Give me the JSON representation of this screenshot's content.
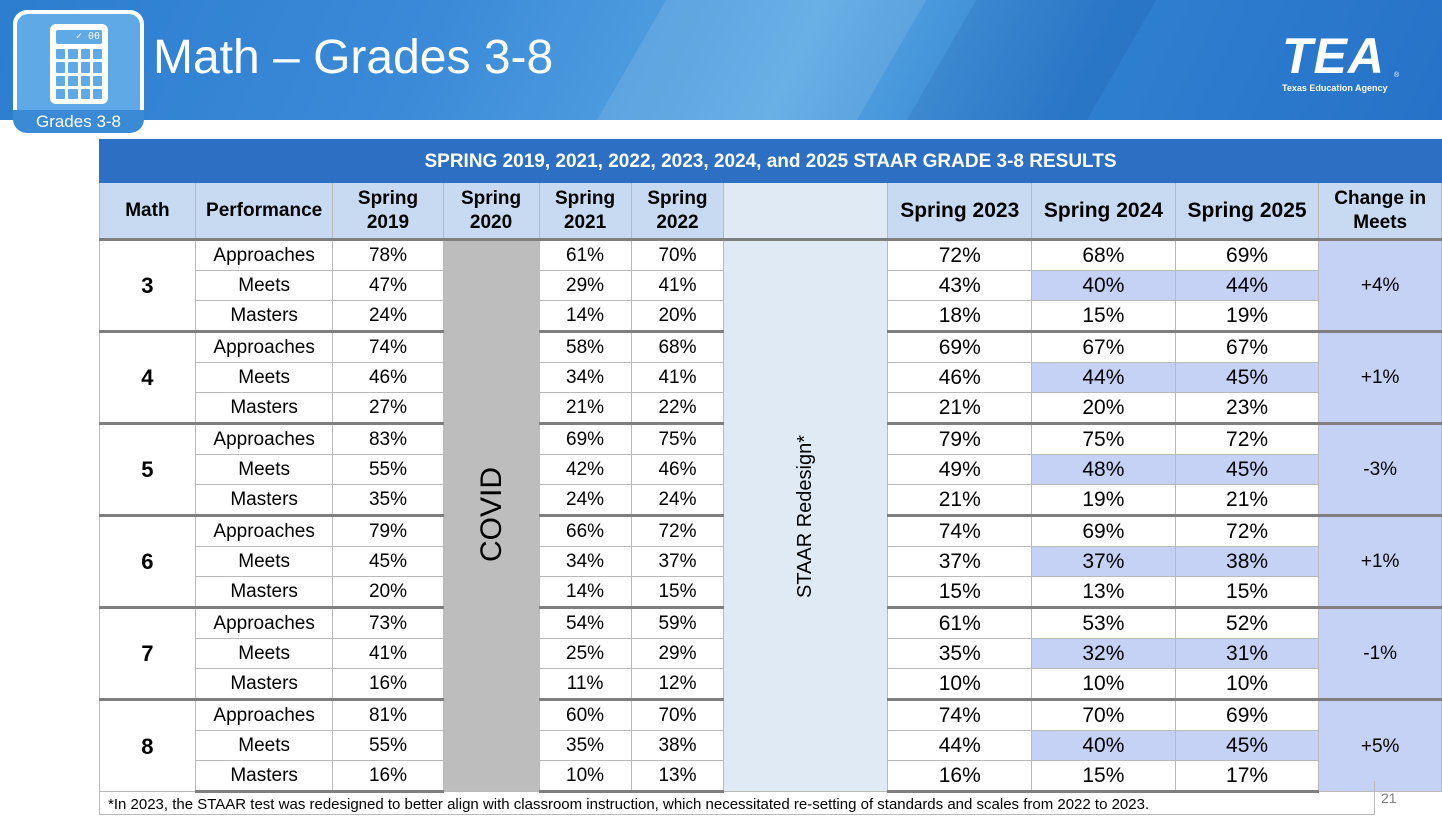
{
  "header": {
    "title": "Math – Grades 3-8",
    "icon_label": "Grades 3-8",
    "calc_screen": "✓ 00",
    "logo_text": "TEA",
    "logo_subtitle": "Texas Education Agency",
    "logo_reg": "®"
  },
  "table": {
    "caption": "SPRING 2019, 2021, 2022, 2023, 2024, and 2025 STAAR GRADE 3-8 RESULTS",
    "headers": {
      "math": "Math",
      "performance": "Performance",
      "spring2019_a": "Spring",
      "spring2019_b": "2019",
      "spring2020_a": "Spring",
      "spring2020_b": "2020",
      "spring2021_a": "Spring",
      "spring2021_b": "2021",
      "spring2022_a": "Spring",
      "spring2022_b": "2022",
      "spring2023": "Spring 2023",
      "spring2024": "Spring 2024",
      "spring2025": "Spring 2025",
      "change_a": "Change in",
      "change_b": "Meets"
    },
    "covid_label": "COVID",
    "redesign_label": "STAAR Redesign*",
    "grades": [
      {
        "grade": "3",
        "change": "+4%",
        "rows": [
          {
            "level": "Approaches",
            "s2019": "78%",
            "s2021": "61%",
            "s2022": "70%",
            "s2023": "72%",
            "s2024": "68%",
            "s2025": "69%"
          },
          {
            "level": "Meets",
            "s2019": "47%",
            "s2021": "29%",
            "s2022": "41%",
            "s2023": "43%",
            "s2024": "40%",
            "s2025": "44%"
          },
          {
            "level": "Masters",
            "s2019": "24%",
            "s2021": "14%",
            "s2022": "20%",
            "s2023": "18%",
            "s2024": "15%",
            "s2025": "19%"
          }
        ]
      },
      {
        "grade": "4",
        "change": "+1%",
        "rows": [
          {
            "level": "Approaches",
            "s2019": "74%",
            "s2021": "58%",
            "s2022": "68%",
            "s2023": "69%",
            "s2024": "67%",
            "s2025": "67%"
          },
          {
            "level": "Meets",
            "s2019": "46%",
            "s2021": "34%",
            "s2022": "41%",
            "s2023": "46%",
            "s2024": "44%",
            "s2025": "45%"
          },
          {
            "level": "Masters",
            "s2019": "27%",
            "s2021": "21%",
            "s2022": "22%",
            "s2023": "21%",
            "s2024": "20%",
            "s2025": "23%"
          }
        ]
      },
      {
        "grade": "5",
        "change": "-3%",
        "rows": [
          {
            "level": "Approaches",
            "s2019": "83%",
            "s2021": "69%",
            "s2022": "75%",
            "s2023": "79%",
            "s2024": "75%",
            "s2025": "72%"
          },
          {
            "level": "Meets",
            "s2019": "55%",
            "s2021": "42%",
            "s2022": "46%",
            "s2023": "49%",
            "s2024": "48%",
            "s2025": "45%"
          },
          {
            "level": "Masters",
            "s2019": "35%",
            "s2021": "24%",
            "s2022": "24%",
            "s2023": "21%",
            "s2024": "19%",
            "s2025": "21%"
          }
        ]
      },
      {
        "grade": "6",
        "change": "+1%",
        "rows": [
          {
            "level": "Approaches",
            "s2019": "79%",
            "s2021": "66%",
            "s2022": "72%",
            "s2023": "74%",
            "s2024": "69%",
            "s2025": "72%"
          },
          {
            "level": "Meets",
            "s2019": "45%",
            "s2021": "34%",
            "s2022": "37%",
            "s2023": "37%",
            "s2024": "37%",
            "s2025": "38%"
          },
          {
            "level": "Masters",
            "s2019": "20%",
            "s2021": "14%",
            "s2022": "15%",
            "s2023": "15%",
            "s2024": "13%",
            "s2025": "15%"
          }
        ]
      },
      {
        "grade": "7",
        "change": "-1%",
        "rows": [
          {
            "level": "Approaches",
            "s2019": "73%",
            "s2021": "54%",
            "s2022": "59%",
            "s2023": "61%",
            "s2024": "53%",
            "s2025": "52%"
          },
          {
            "level": "Meets",
            "s2019": "41%",
            "s2021": "25%",
            "s2022": "29%",
            "s2023": "35%",
            "s2024": "32%",
            "s2025": "31%"
          },
          {
            "level": "Masters",
            "s2019": "16%",
            "s2021": "11%",
            "s2022": "12%",
            "s2023": "10%",
            "s2024": "10%",
            "s2025": "10%"
          }
        ]
      },
      {
        "grade": "8",
        "change": "+5%",
        "rows": [
          {
            "level": "Approaches",
            "s2019": "81%",
            "s2021": "60%",
            "s2022": "70%",
            "s2023": "74%",
            "s2024": "70%",
            "s2025": "69%"
          },
          {
            "level": "Meets",
            "s2019": "55%",
            "s2021": "35%",
            "s2022": "38%",
            "s2023": "44%",
            "s2024": "40%",
            "s2025": "45%"
          },
          {
            "level": "Masters",
            "s2019": "16%",
            "s2021": "10%",
            "s2022": "13%",
            "s2023": "16%",
            "s2024": "15%",
            "s2025": "17%"
          }
        ]
      }
    ]
  },
  "footnote": "*In 2023, the STAAR test was redesigned to better align with classroom instruction, which necessitated re-setting of standards and scales from 2022 to 2023.",
  "page_number": "21",
  "colors": {
    "banner_blue": "#2d7dd0",
    "caption_blue": "#2d6fc2",
    "header_fill": "#c8daf2",
    "highlight": "#c5d1f5",
    "covid_gray": "#bdbdbd",
    "redesign_fill": "#dfeaf5"
  }
}
